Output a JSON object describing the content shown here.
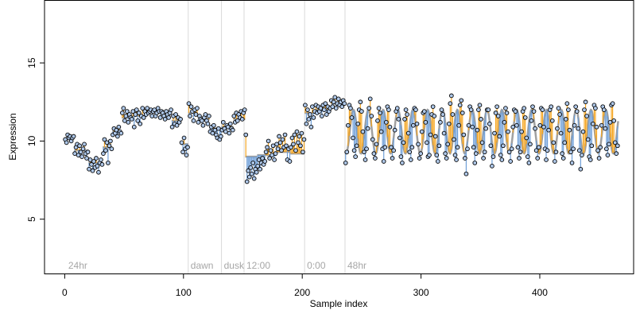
{
  "chart_data": {
    "type": "scatter",
    "xlabel": "Sample index",
    "ylabel": "Expression",
    "xlim": [
      -17,
      479
    ],
    "ylim": [
      1.5,
      19
    ],
    "x_ticks": [
      0,
      100,
      200,
      300,
      400
    ],
    "y_ticks": [
      5,
      10,
      15
    ],
    "grid": false,
    "legend": "none",
    "colors": {
      "fit_line": "#a0a0a0",
      "above_segment": "#f5a623",
      "below_segment": "#6f9fd8",
      "point_fill": "#aec7e8",
      "point_edge": "#000000",
      "phase_line": "#d9d9d9",
      "phase_label": "#a6a6a6"
    },
    "phase_boundaries": [
      {
        "x": 104,
        "label": "dawn"
      },
      {
        "x": 132,
        "label": "dusk"
      },
      {
        "x": 151,
        "label": "12:00"
      },
      {
        "x": 202,
        "label": "0:00"
      },
      {
        "x": 236,
        "label": "48hr"
      }
    ],
    "start_label": {
      "x": 3,
      "label": "24hr"
    },
    "segments": [
      {
        "x_start": 0,
        "x_end": 8,
        "fitted": 10.2,
        "observed": [
          10.1,
          9.9,
          10.4,
          10.2,
          10.3,
          10.0,
          10.2,
          10.3
        ]
      },
      {
        "x_start": 8,
        "x_end": 20,
        "fitted": 9.4,
        "observed": [
          9.2,
          9.6,
          9.8,
          9.1,
          9.7,
          9.3,
          9.0,
          9.5,
          9.8,
          9.2,
          8.9,
          9.3
        ]
      },
      {
        "x_start": 20,
        "x_end": 32,
        "fitted": 8.6,
        "observed": [
          8.2,
          8.8,
          8.5,
          8.1,
          8.7,
          8.3,
          8.9,
          8.4,
          8.0,
          8.6,
          8.8,
          8.5
        ]
      },
      {
        "x_start": 32,
        "x_end": 40,
        "fitted": 9.6,
        "observed": [
          9.2,
          10.1,
          9.4,
          9.9,
          8.6,
          9.7,
          10.0,
          9.5
        ]
      },
      {
        "x_start": 40,
        "x_end": 48,
        "fitted": 10.6,
        "observed": [
          10.4,
          10.8,
          10.5,
          10.7,
          10.3,
          10.9,
          10.6,
          10.5
        ]
      },
      {
        "x_start": 48,
        "x_end": 56,
        "fitted": 11.5,
        "observed": [
          11.8,
          12.1,
          11.3,
          11.6,
          11.9,
          11.2,
          11.7,
          11.5
        ]
      },
      {
        "x_start": 56,
        "x_end": 68,
        "fitted": 11.6,
        "observed": [
          11.4,
          11.9,
          10.9,
          11.7,
          12.0,
          11.3,
          11.8,
          11.1,
          11.6,
          12.1,
          11.5,
          11.9
        ]
      },
      {
        "x_start": 68,
        "x_end": 80,
        "fitted": 11.9,
        "observed": [
          11.7,
          12.1,
          11.8,
          11.9,
          12.0,
          11.6,
          11.9,
          12.0,
          11.6,
          11.8,
          12.1,
          11.9
        ]
      },
      {
        "x_start": 80,
        "x_end": 90,
        "fitted": 11.7,
        "observed": [
          11.5,
          11.9,
          11.8,
          11.6,
          11.4,
          11.9,
          11.7,
          11.5,
          11.8,
          12.0
        ]
      },
      {
        "x_start": 90,
        "x_end": 98,
        "fitted": 11.3,
        "observed": [
          10.9,
          11.6,
          11.1,
          11.7,
          11.0,
          11.5,
          11.2,
          11.4
        ]
      },
      {
        "x_start": 98,
        "x_end": 104,
        "fitted": 9.8,
        "observed": [
          9.9,
          9.3,
          10.2,
          9.5,
          9.1,
          9.6
        ]
      },
      {
        "x_start": 104,
        "x_end": 112,
        "fitted": 11.8,
        "observed": [
          12.4,
          11.6,
          12.2,
          11.9,
          11.3,
          12.0,
          11.7,
          12.1
        ]
      },
      {
        "x_start": 112,
        "x_end": 122,
        "fitted": 11.4,
        "observed": [
          11.2,
          11.6,
          11.4,
          11.3,
          11.0,
          11.5,
          11.7,
          11.3,
          11.1,
          11.6
        ]
      },
      {
        "x_start": 122,
        "x_end": 132,
        "fitted": 10.8,
        "observed": [
          10.6,
          10.9,
          10.5,
          11.0,
          10.7,
          10.4,
          10.2,
          10.8,
          10.1,
          10.3
        ]
      },
      {
        "x_start": 132,
        "x_end": 142,
        "fitted": 10.9,
        "observed": [
          10.7,
          11.2,
          10.8,
          10.6,
          11.0,
          10.9,
          10.5,
          11.1,
          10.8,
          10.7
        ]
      },
      {
        "x_start": 142,
        "x_end": 152,
        "fitted": 11.4,
        "observed": [
          11.6,
          11.2,
          11.8,
          11.3,
          11.7,
          11.5,
          11.9,
          11.4,
          11.8,
          12.0
        ]
      },
      {
        "x_start": 152,
        "x_end": 162,
        "fitted": 9.0,
        "observed": [
          10.4,
          7.4,
          8.1,
          7.7,
          8.3,
          7.9,
          8.6,
          7.6,
          8.2,
          8.0
        ]
      },
      {
        "x_start": 162,
        "x_end": 178,
        "fitted": 9.1,
        "observed": [
          8.4,
          8.8,
          8.2,
          8.6,
          8.9,
          8.5,
          8.7,
          9.3,
          9.6,
          10.0,
          8.9,
          9.4,
          9.1,
          9.7,
          8.8,
          9.2
        ]
      },
      {
        "x_start": 178,
        "x_end": 190,
        "fitted": 9.3,
        "observed": [
          9.8,
          9.5,
          10.3,
          9.9,
          9.4,
          10.1,
          9.6,
          10.4,
          9.7,
          8.8,
          9.5,
          8.7
        ]
      },
      {
        "x_start": 190,
        "x_end": 202,
        "fitted": 9.2,
        "observed": [
          9.6,
          10.2,
          9.8,
          10.4,
          9.4,
          10.6,
          9.9,
          10.3,
          9.7,
          10.5,
          9.3,
          10.1
        ]
      },
      {
        "x_start": 202,
        "x_end": 212,
        "fitted": 11.8,
        "observed": [
          12.3,
          11.1,
          12.0,
          11.4,
          11.7,
          10.9,
          12.2,
          11.5,
          11.9,
          12.3
        ]
      },
      {
        "x_start": 212,
        "x_end": 224,
        "fitted": 12.0,
        "observed": [
          11.8,
          12.2,
          11.9,
          12.1,
          11.6,
          12.3,
          12.0,
          12.4,
          11.7,
          12.2,
          11.9,
          12.1
        ]
      },
      {
        "x_start": 224,
        "x_end": 236,
        "fitted": 12.4,
        "observed": [
          12.6,
          12.2,
          12.5,
          12.8,
          12.1,
          12.4,
          12.7,
          12.3,
          12.5,
          12.2,
          12.6,
          12.4
        ]
      }
    ],
    "oscillation": {
      "x_start": 236,
      "x_end": 466,
      "center": 10.6,
      "amplitude": 1.4,
      "period": 12.5,
      "phase_x": 240,
      "observed": [
        8.6,
        9.3,
        11.0,
        12.3,
        12.1,
        11.5,
        10.2,
        9.4,
        9.0,
        9.7,
        11.1,
        12.0,
        12.5,
        11.9,
        10.6,
        9.3,
        8.8,
        9.5,
        10.8,
        12.1,
        12.7,
        11.6,
        10.1,
        9.2,
        8.9,
        9.8,
        11.3,
        12.1,
        11.8,
        10.6,
        9.5,
        8.7,
        9.6,
        11.2,
        12.2,
        12.0,
        10.9,
        9.6,
        8.9,
        9.4,
        10.7,
        11.9,
        12.1,
        11.4,
        10.2,
        9.0,
        8.6,
        9.9,
        11.4,
        12.0,
        11.7,
        10.5,
        9.3,
        8.8,
        9.6,
        11.0,
        12.1,
        12.0,
        11.1,
        9.8,
        8.9,
        9.2,
        10.6,
        11.8,
        11.9,
        11.2,
        9.9,
        9.0,
        9.1,
        10.4,
        11.7,
        12.2,
        11.6,
        10.3,
        9.1,
        8.7,
        9.7,
        11.2,
        12.0,
        11.7,
        10.5,
        9.2,
        8.9,
        9.8,
        11.1,
        12.4,
        12.9,
        11.7,
        10.1,
        9.1,
        8.8,
        9.6,
        11.0,
        12.3,
        12.6,
        11.8,
        10.4,
        8.9,
        7.9,
        9.5,
        11.0,
        12.2,
        12.0,
        10.9,
        9.6,
        8.6,
        9.2,
        10.7,
        12.0,
        12.3,
        11.4,
        9.9,
        8.9,
        9.3,
        10.8,
        12.0,
        12.0,
        11.1,
        9.7,
        8.4,
        9.0,
        10.5,
        11.8,
        12.2,
        11.6,
        10.3,
        9.1,
        8.8,
        9.7,
        11.2,
        12.1,
        11.8,
        10.6,
        9.3,
        8.7,
        9.5,
        10.9,
        12.0,
        11.9,
        11.0,
        9.6,
        8.9,
        9.3,
        10.6,
        11.9,
        12.1,
        11.5,
        10.2,
        9.0,
        8.6,
        9.8,
        11.3,
        12.2,
        11.9,
        10.8,
        9.4,
        8.9,
        9.6,
        11.0,
        12.1,
        12.0,
        10.9,
        9.5,
        8.8,
        9.4,
        10.7,
        12.0,
        12.2,
        11.3,
        9.9,
        8.7,
        9.3,
        10.8,
        12.1,
        11.7,
        10.5,
        9.2,
        8.9,
        9.9,
        11.4,
        12.4,
        12.0,
        10.7,
        9.3,
        8.6,
        9.5,
        11.0,
        12.2,
        11.9,
        10.8,
        9.4,
        8.2,
        9.1,
        10.6,
        12.0,
        12.5,
        11.6,
        10.1,
        9.0,
        8.8,
        9.7,
        11.1,
        12.3,
        12.1,
        10.9,
        9.4,
        8.9,
        9.6,
        11.0,
        12.2,
        12.0,
        10.8,
        9.5,
        9.1,
        9.8,
        11.2,
        12.3,
        12.4,
        11.3,
        9.9,
        9.2,
        9.7
      ]
    }
  }
}
